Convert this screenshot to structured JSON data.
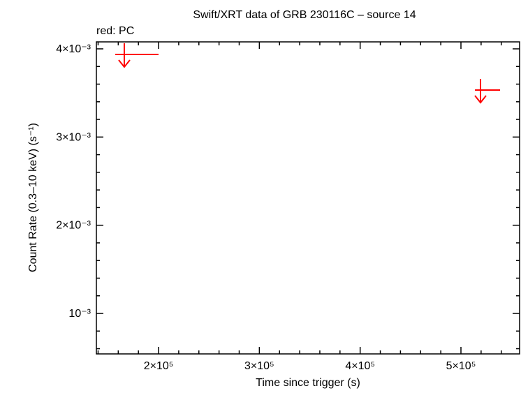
{
  "chart_data": {
    "type": "scatter",
    "title": "Swift/XRT data of GRB 230116C – source 14",
    "subtitle": "red: PC",
    "xlabel": "Time since trigger (s)",
    "ylabel": "Count Rate (0.3–10 keV) (s⁻¹)",
    "xlim": [
      138300,
      558200
    ],
    "ylim": [
      0.000541,
      0.004079
    ],
    "xticks": [
      {
        "value": 200000,
        "label": "2×10⁵"
      },
      {
        "value": 300000,
        "label": "3×10⁵"
      },
      {
        "value": 400000,
        "label": "4×10⁵"
      },
      {
        "value": 500000,
        "label": "5×10⁵"
      }
    ],
    "yticks": [
      {
        "value": 0.001,
        "label": "10⁻³"
      },
      {
        "value": 0.002,
        "label": "2×10⁻³"
      },
      {
        "value": 0.003,
        "label": "3×10⁻³"
      },
      {
        "value": 0.004,
        "label": "4×10⁻³"
      }
    ],
    "xminorticks": [
      140000,
      160000,
      180000,
      220000,
      240000,
      260000,
      280000,
      320000,
      340000,
      360000,
      380000,
      420000,
      440000,
      460000,
      480000,
      520000,
      540000
    ],
    "yminorticks": [
      0.0006,
      0.0008,
      0.0012,
      0.0014,
      0.0016,
      0.0018,
      0.0022,
      0.0024,
      0.0026,
      0.0028,
      0.0032,
      0.0034,
      0.0036,
      0.0038
    ],
    "series": [
      {
        "name": "PC",
        "color": "#ff0000",
        "upper_limit": true,
        "x": [
          166000,
          519400
        ],
        "xerr_minus": [
          9000,
          5500
        ],
        "xerr_plus": [
          34000,
          19400
        ],
        "values": [
          0.003937,
          0.003533
        ]
      }
    ]
  }
}
